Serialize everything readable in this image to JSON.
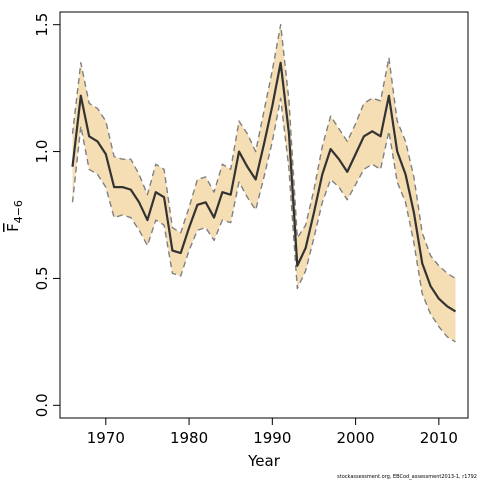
{
  "chart_data": {
    "type": "line",
    "xlabel": "Year",
    "ylabel": {
      "main": "F",
      "subscript": "4−6"
    },
    "footnote": "stockassessment.org, EBCod_assessment2013-1, r1792",
    "xlim": [
      1964.5,
      2013.5
    ],
    "ylim": [
      -0.05,
      1.55
    ],
    "x_ticks": [
      1970,
      1980,
      1990,
      2000,
      2010
    ],
    "y_ticks": [
      0.0,
      0.5,
      1.0,
      1.5
    ],
    "x_tick_labels": [
      "1970",
      "1980",
      "1990",
      "2000",
      "2010"
    ],
    "y_tick_labels": [
      "0.0",
      "0.5",
      "1.0",
      "1.5"
    ],
    "grid": false,
    "colors": {
      "band": "#f5deb3",
      "estimate": "#333333",
      "bounds": "#808080",
      "axis": "#000000"
    },
    "x": [
      1966,
      1967,
      1968,
      1969,
      1970,
      1971,
      1972,
      1973,
      1974,
      1975,
      1976,
      1977,
      1978,
      1979,
      1980,
      1981,
      1982,
      1983,
      1984,
      1985,
      1986,
      1987,
      1988,
      1989,
      1990,
      1991,
      1992,
      1993,
      1994,
      1995,
      1996,
      1997,
      1998,
      1999,
      2000,
      2001,
      2002,
      2003,
      2004,
      2005,
      2006,
      2007,
      2008,
      2009,
      2010,
      2011,
      2012
    ],
    "series": [
      {
        "role": "estimate",
        "values": [
          0.94,
          1.22,
          1.06,
          1.04,
          0.99,
          0.86,
          0.86,
          0.85,
          0.8,
          0.73,
          0.84,
          0.82,
          0.61,
          0.6,
          0.7,
          0.79,
          0.8,
          0.74,
          0.84,
          0.83,
          1.0,
          0.94,
          0.89,
          1.03,
          1.18,
          1.35,
          1.07,
          0.55,
          0.62,
          0.76,
          0.91,
          1.01,
          0.97,
          0.92,
          0.99,
          1.06,
          1.08,
          1.06,
          1.22,
          1.0,
          0.91,
          0.76,
          0.56,
          0.47,
          0.42,
          0.39,
          0.37
        ]
      },
      {
        "role": "upper",
        "values": [
          1.07,
          1.35,
          1.19,
          1.17,
          1.12,
          0.98,
          0.97,
          0.97,
          0.91,
          0.83,
          0.95,
          0.93,
          0.7,
          0.68,
          0.78,
          0.89,
          0.9,
          0.84,
          0.95,
          0.93,
          1.12,
          1.07,
          1.0,
          1.16,
          1.32,
          1.5,
          1.2,
          0.66,
          0.71,
          0.85,
          1.02,
          1.14,
          1.09,
          1.04,
          1.11,
          1.19,
          1.21,
          1.2,
          1.37,
          1.12,
          1.04,
          0.9,
          0.68,
          0.59,
          0.55,
          0.52,
          0.5
        ]
      },
      {
        "role": "lower",
        "values": [
          0.8,
          1.1,
          0.93,
          0.91,
          0.86,
          0.74,
          0.75,
          0.74,
          0.69,
          0.63,
          0.73,
          0.71,
          0.52,
          0.51,
          0.61,
          0.69,
          0.7,
          0.65,
          0.73,
          0.72,
          0.88,
          0.82,
          0.77,
          0.9,
          1.04,
          1.21,
          0.93,
          0.46,
          0.53,
          0.66,
          0.8,
          0.89,
          0.86,
          0.81,
          0.87,
          0.93,
          0.95,
          0.93,
          1.08,
          0.88,
          0.8,
          0.64,
          0.44,
          0.36,
          0.31,
          0.27,
          0.25
        ]
      }
    ]
  }
}
